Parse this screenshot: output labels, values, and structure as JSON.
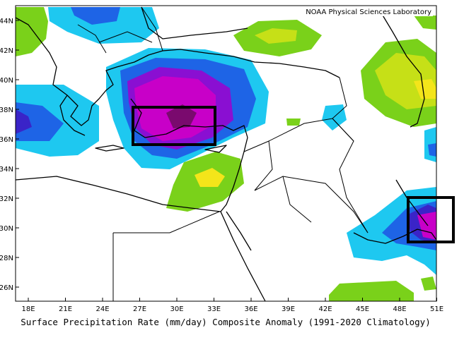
{
  "credit": "NOAA Physical Sciences Laboratory",
  "caption": "Surface Precipitation Rate (mm/day) Composite Anomaly (1991-2020 Climatology)",
  "lat_labels": [
    "44N",
    "42N",
    "40N",
    "38N",
    "36N",
    "34N",
    "32N",
    "30N",
    "28N",
    "26N"
  ],
  "lon_labels": [
    "18E",
    "21E",
    "24E",
    "27E",
    "30E",
    "33E",
    "36E",
    "39E",
    "42E",
    "45E",
    "48E",
    "51E"
  ],
  "map": {
    "lon_range": [
      17,
      51
    ],
    "lat_range": [
      25,
      45
    ],
    "projection": "equirectangular"
  },
  "palette": {
    "green": "#7ad11a",
    "yellow_green": "#c6e017",
    "yellow": "#f4e51a",
    "cyan": "#1ec8f0",
    "blue": "#1e64e6",
    "dark_blue": "#3a24c8",
    "purple": "#8a0fd2",
    "magenta": "#c800c8",
    "dark_magenta": "#7a0a6e"
  },
  "highlight_boxes": [
    {
      "label": "box-western-turkey",
      "lon": [
        26.6,
        33.2
      ],
      "lat": [
        35.8,
        38.2
      ]
    },
    {
      "label": "box-persian-gulf-head",
      "lon": [
        49.0,
        52.5
      ],
      "lat": [
        29.0,
        32.0
      ]
    }
  ]
}
